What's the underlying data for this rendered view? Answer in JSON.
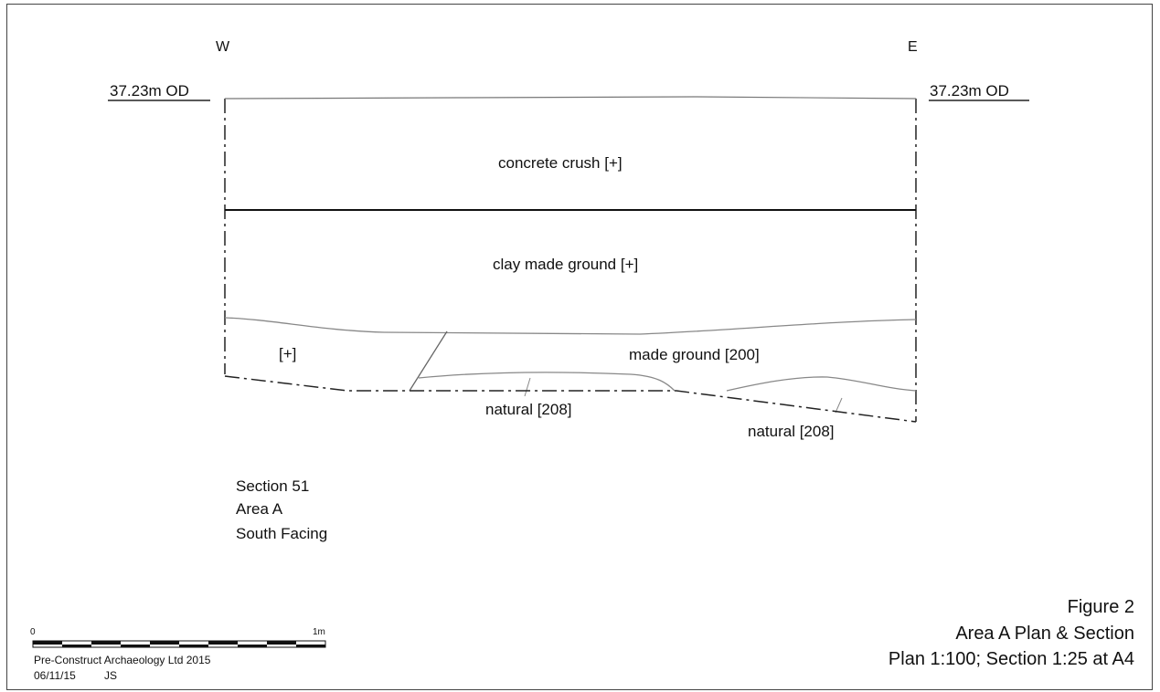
{
  "section": {
    "west_label": "W",
    "east_label": "E",
    "datum_left": "37.23m OD",
    "datum_right": "37.23m OD",
    "layers": {
      "concrete_crush": "concrete crush [+]",
      "clay_made_ground": "clay made ground [+]",
      "unnumbered": "[+]",
      "made_ground": "made ground [200]",
      "natural_left": "natural [208]",
      "natural_right": "natural [208]"
    }
  },
  "section_info": {
    "line1": "Section 51",
    "line2": "Area A",
    "line3": "South Facing"
  },
  "scale_bar": {
    "start_label": "0",
    "end_label": "1m"
  },
  "credits": {
    "company": "Pre-Construct Archaeology Ltd 2015",
    "date": "06/11/15",
    "initials": "JS"
  },
  "figure": {
    "number": "Figure 2",
    "title": "Area A Plan & Section",
    "scale": "Plan 1:100; Section 1:25 at A4"
  }
}
